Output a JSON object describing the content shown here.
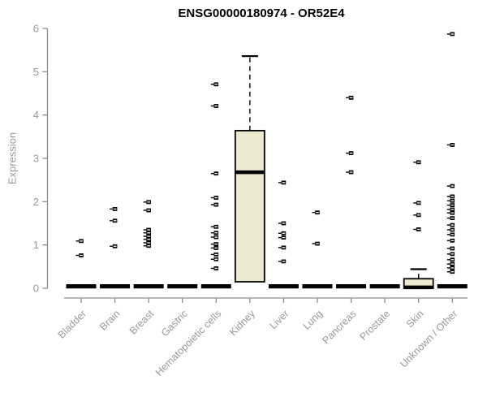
{
  "colors": {
    "axis": "#8c8c8c",
    "text": "#999999",
    "title": "#000000",
    "box_fill": "#EDE8D0",
    "box_border": "#000000",
    "marker": "#000000",
    "marker_slit": "#ffffff",
    "background": "#ffffff"
  },
  "chart_data": {
    "type": "boxplot",
    "title": "ENSG00000180974 - OR52E4",
    "ylabel": "Expression",
    "xlabel": "",
    "ylim": [
      0,
      6
    ],
    "yticks": [
      0,
      1,
      2,
      3,
      4,
      5,
      6
    ],
    "grid": false,
    "legend": false,
    "categories": [
      "Bladder",
      "Brain",
      "Breast",
      "Gastric",
      "Hematopoietic cells",
      "Kidney",
      "Liver",
      "Lung",
      "Pancreas",
      "Prostate",
      "Skin",
      "Unknown / Other"
    ],
    "boxes": [
      {
        "category": "Bladder",
        "q1": 0,
        "median": 0,
        "q3": 0,
        "whisker_low": 0,
        "whisker_high": 0,
        "outliers": [
          1.09,
          0.76
        ]
      },
      {
        "category": "Brain",
        "q1": 0,
        "median": 0,
        "q3": 0,
        "whisker_low": 0,
        "whisker_high": 0,
        "outliers": [
          1.83,
          1.56,
          0.97
        ]
      },
      {
        "category": "Breast",
        "q1": 0,
        "median": 0,
        "q3": 0,
        "whisker_low": 0,
        "whisker_high": 0,
        "outliers": [
          1.99,
          1.8,
          1.35,
          1.28,
          1.2,
          1.13,
          1.05,
          0.98
        ]
      },
      {
        "category": "Gastric",
        "q1": 0,
        "median": 0,
        "q3": 0,
        "whisker_low": 0,
        "whisker_high": 0,
        "outliers": []
      },
      {
        "category": "Hematopoietic cells",
        "q1": 0,
        "median": 0,
        "q3": 0,
        "whisker_low": 0,
        "whisker_high": 0,
        "outliers": [
          4.71,
          4.21,
          2.65,
          2.09,
          1.93,
          1.42,
          1.28,
          1.18,
          1.02,
          0.93,
          0.78,
          0.67,
          0.46
        ]
      },
      {
        "category": "Kidney",
        "q1": 0.15,
        "median": 2.68,
        "q3": 3.64,
        "whisker_low": null,
        "whisker_high": 5.36,
        "outliers": []
      },
      {
        "category": "Liver",
        "q1": 0,
        "median": 0,
        "q3": 0,
        "whisker_low": 0,
        "whisker_high": 0,
        "outliers": [
          2.44,
          1.5,
          1.27,
          1.17,
          0.94,
          0.62
        ]
      },
      {
        "category": "Lung",
        "q1": 0,
        "median": 0,
        "q3": 0,
        "whisker_low": 0,
        "whisker_high": 0,
        "outliers": [
          1.75,
          1.03
        ]
      },
      {
        "category": "Pancreas",
        "q1": 0,
        "median": 0,
        "q3": 0,
        "whisker_low": 0,
        "whisker_high": 0,
        "outliers": [
          4.4,
          3.12,
          2.68
        ]
      },
      {
        "category": "Prostate",
        "q1": 0,
        "median": 0,
        "q3": 0,
        "whisker_low": 0,
        "whisker_high": 0,
        "outliers": []
      },
      {
        "category": "Skin",
        "q1": 0,
        "median": 0.02,
        "q3": 0.22,
        "whisker_low": 0,
        "whisker_high": 0.44,
        "outliers": [
          2.91,
          1.97,
          1.69,
          1.36
        ]
      },
      {
        "category": "Unknown / Other",
        "q1": 0,
        "median": 0,
        "q3": 0,
        "whisker_low": 0,
        "whisker_high": 0,
        "outliers": [
          5.87,
          3.31,
          2.36,
          2.12,
          2.02,
          1.92,
          1.82,
          1.74,
          1.62,
          1.46,
          1.35,
          1.24,
          1.1,
          0.92,
          0.79,
          0.66,
          0.56,
          0.47,
          0.38
        ]
      }
    ]
  }
}
